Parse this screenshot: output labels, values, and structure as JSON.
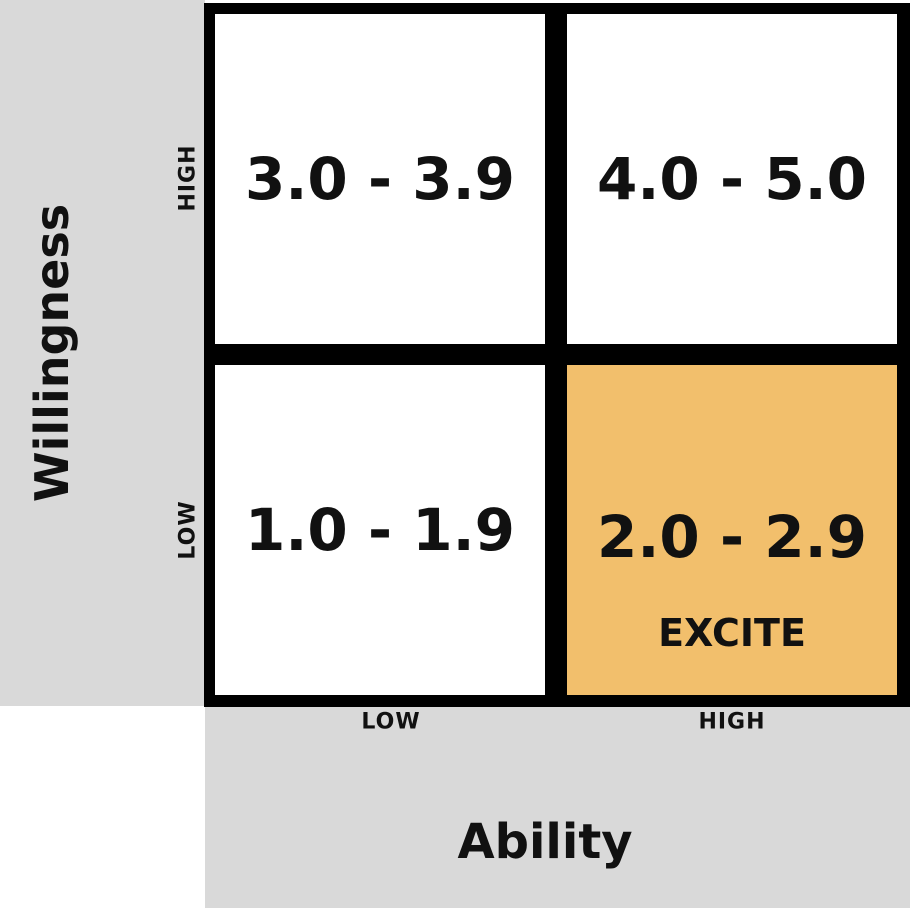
{
  "axes": {
    "y_title": "Willingness",
    "x_title": "Ability",
    "y_ticks": {
      "high": "HIGH",
      "low": "LOW"
    },
    "x_ticks": {
      "low": "LOW",
      "high": "HIGH"
    }
  },
  "cells": {
    "top_left": {
      "value": "3.0 - 3.9"
    },
    "top_right": {
      "value": "4.0 - 5.0"
    },
    "bottom_left": {
      "value": "1.0 - 1.9"
    },
    "bottom_right": {
      "value": "2.0 - 2.9",
      "label": "EXCITE"
    }
  },
  "colors": {
    "highlight": "#f2bf6c",
    "axis_panel": "#d9d9d9",
    "grid_line": "#000000",
    "cell_background": "#ffffff"
  }
}
